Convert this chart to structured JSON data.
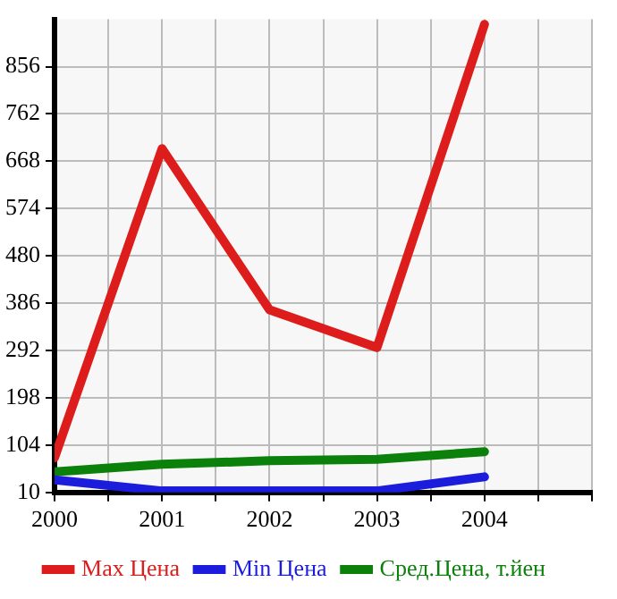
{
  "chart_data": {
    "type": "line",
    "x": [
      2000,
      2001,
      2002,
      2003,
      2004
    ],
    "series": [
      {
        "name": "Max Цена",
        "color": "#dd1c1c",
        "values": [
          79,
          693,
          373,
          298,
          940
        ]
      },
      {
        "name": "Min Цена",
        "color": "#1c1cdd",
        "values": [
          35,
          13,
          13,
          13,
          41
        ]
      },
      {
        "name": "Сред.Цена, т.йен",
        "color": "#0b800b",
        "values": [
          51,
          66,
          73,
          76,
          91
        ]
      }
    ],
    "xlim": [
      2000,
      2005
    ],
    "xticks": [
      2000,
      {
        "value": 2000.5,
        "label": null
      },
      2001,
      {
        "value": 2001.5,
        "label": null
      },
      2002,
      {
        "value": 2002.5,
        "label": null
      },
      2003,
      {
        "value": 2003.5,
        "label": null
      },
      2004,
      {
        "value": 2004.5,
        "label": null
      },
      {
        "value": 2005,
        "label": null
      }
    ],
    "ylim": [
      10,
      950
    ],
    "yticks": [
      10,
      104,
      198,
      292,
      386,
      480,
      574,
      668,
      762,
      856
    ],
    "grid": true,
    "legend": "bottom",
    "marker": "none",
    "line_style": "solid"
  }
}
